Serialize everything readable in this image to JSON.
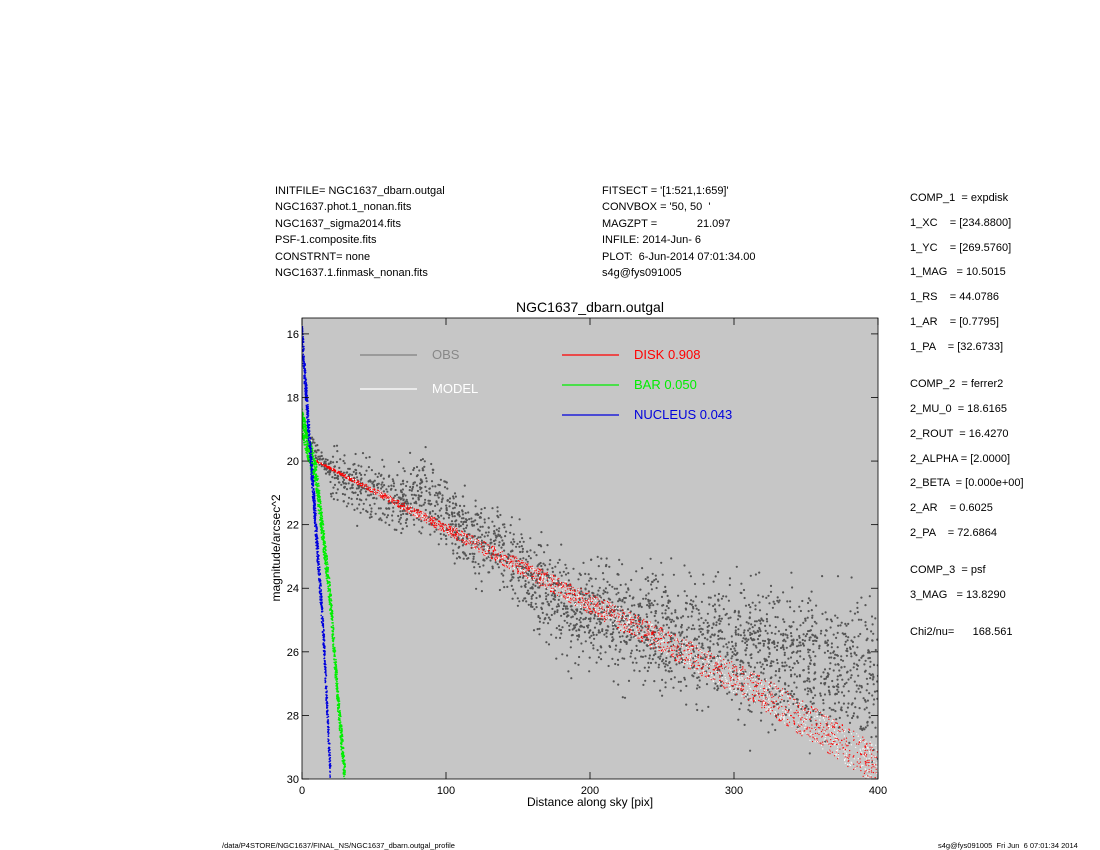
{
  "header_left": [
    "INITFILE= NGC1637_dbarn.outgal",
    "NGC1637.phot.1_nonan.fits",
    "NGC1637_sigma2014.fits",
    "PSF-1.composite.fits",
    "CONSTRNT= none",
    "NGC1637.1.finmask_nonan.fits"
  ],
  "header_right": [
    "FITSECT = '[1:521,1:659]'",
    "CONVBOX = '50, 50  '",
    "MAGZPT =             21.097",
    "INFILE: 2014-Jun- 6",
    "PLOT:  6-Jun-2014 07:01:34.00",
    "s4g@fys091005"
  ],
  "params": [
    "COMP_1  = expdisk",
    "1_XC    = [234.8800]",
    "1_YC    = [269.5760]",
    "1_MAG   = 10.5015",
    "1_RS    = 44.0786",
    "1_AR    = [0.7795]",
    "1_PA    = [32.6733]",
    "COMP_2  = ferrer2",
    "2_MU_0  = 18.6165",
    "2_ROUT  = 16.4270",
    "2_ALPHA = [2.0000]",
    "2_BETA  = [0.000e+00]",
    "2_AR    = 0.6025",
    "2_PA    = 72.6864",
    "COMP_3  = psf",
    "3_MAG   = 13.8290",
    "Chi2/nu=      168.561"
  ],
  "footer": {
    "left": "/data/P4STORE/NGC1637/FINAL_NS/NGC1637_dbarn.outgal_profile",
    "right": "s4g@fys091005  Fri Jun  6 07:01:34 2014"
  },
  "colors": {
    "background": "#c6c6c6",
    "obs": "#555555",
    "model": "#ffffff",
    "disk": "#ff0000",
    "bar": "#00ee00",
    "nucleus": "#0000dd"
  },
  "chart_data": {
    "type": "scatter",
    "title": "NGC1637_dbarn.outgal",
    "xlabel": "Distance along sky [pix]",
    "ylabel": "magnitude/arcsec^2",
    "xlim": [
      0,
      400
    ],
    "ylim": [
      15.5,
      30
    ],
    "y_inverted": true,
    "xticks": [
      0,
      100,
      200,
      300,
      400
    ],
    "yticks": [
      16,
      18,
      20,
      22,
      24,
      26,
      28,
      30
    ],
    "legend": [
      {
        "label": "OBS",
        "color": "#888888",
        "line_color": "#808080"
      },
      {
        "label": "MODEL",
        "color": "#ffffff",
        "line_color": "#ffffff"
      },
      {
        "label": "DISK  0.908",
        "color": "#ff0000",
        "line_color": "#ff0000"
      },
      {
        "label": "BAR  0.050",
        "color": "#00ee00",
        "line_color": "#00ee00"
      },
      {
        "label": "NUCLEUS  0.043",
        "color": "#0000dd",
        "line_color": "#0000dd"
      }
    ],
    "series": [
      {
        "name": "OBS",
        "kind": "scatter-profile",
        "x": [
          5,
          10,
          15,
          20,
          30,
          40,
          50,
          60,
          70,
          80,
          90,
          100,
          110,
          120,
          130,
          140,
          150,
          160,
          170,
          180,
          190,
          200,
          210,
          220,
          240,
          260,
          280,
          300,
          320,
          340,
          360,
          380,
          400
        ],
        "y": [
          19.3,
          19.8,
          20.1,
          20.3,
          20.6,
          20.8,
          21.0,
          21.2,
          21.2,
          21.0,
          21.1,
          21.6,
          22.2,
          22.5,
          22.6,
          22.8,
          23.3,
          23.8,
          24.2,
          24.5,
          24.7,
          24.8,
          24.9,
          25.1,
          25.3,
          25.5,
          25.7,
          25.8,
          26.0,
          26.2,
          26.4,
          26.5,
          26.7
        ]
      },
      {
        "name": "DISK  0.908",
        "kind": "band",
        "x": [
          10,
          320,
          400
        ],
        "y": [
          20.0,
          27.3,
          29.6
        ]
      },
      {
        "name": "BAR  0.050",
        "kind": "band",
        "x": [
          0,
          10,
          20,
          25,
          30
        ],
        "y": [
          18.8,
          20.5,
          24.5,
          27.5,
          30
        ]
      },
      {
        "name": "NUCLEUS  0.043",
        "kind": "band",
        "x": [
          0,
          5,
          10,
          15,
          20
        ],
        "y": [
          16.0,
          19.2,
          22.3,
          25.5,
          30
        ]
      }
    ]
  }
}
